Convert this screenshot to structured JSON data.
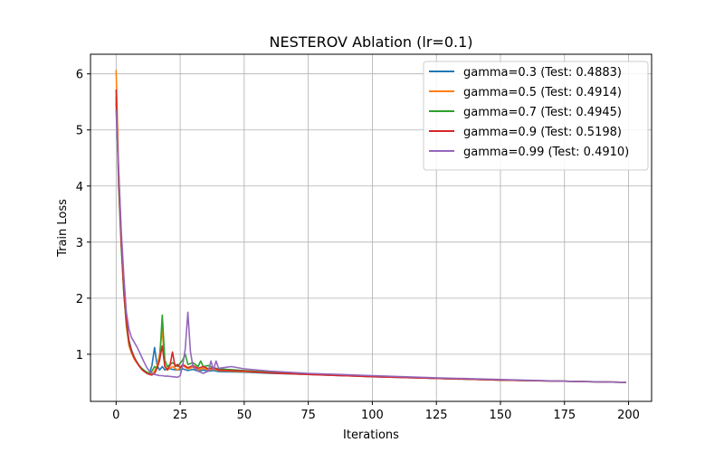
{
  "chart_data": {
    "type": "line",
    "title": "NESTEROV Ablation (lr=0.1)",
    "xlabel": "Iterations",
    "ylabel": "Train Loss",
    "xlim": [
      -10,
      209
    ],
    "ylim": [
      0.16,
      6.35
    ],
    "xticks": [
      0,
      25,
      50,
      75,
      100,
      125,
      150,
      175,
      200
    ],
    "yticks": [
      1,
      2,
      3,
      4,
      5,
      6
    ],
    "grid": true,
    "legend_position": "top-right",
    "series": [
      {
        "name": "gamma=0.3 (Test: 0.4883)",
        "color": "#1f77b4",
        "points": [
          [
            0,
            5.5
          ],
          [
            1,
            4.2
          ],
          [
            2,
            3.1
          ],
          [
            3,
            2.2
          ],
          [
            4,
            1.6
          ],
          [
            5,
            1.25
          ],
          [
            6,
            1.08
          ],
          [
            7,
            0.96
          ],
          [
            8,
            0.87
          ],
          [
            9,
            0.8
          ],
          [
            10,
            0.74
          ],
          [
            11,
            0.7
          ],
          [
            12,
            0.67
          ],
          [
            13,
            0.65
          ],
          [
            14,
            0.8
          ],
          [
            15,
            1.12
          ],
          [
            16,
            0.8
          ],
          [
            17,
            0.72
          ],
          [
            18,
            0.78
          ],
          [
            19,
            0.72
          ],
          [
            20,
            0.75
          ],
          [
            22,
            0.73
          ],
          [
            24,
            0.72
          ],
          [
            26,
            0.74
          ],
          [
            28,
            0.71
          ],
          [
            30,
            0.73
          ],
          [
            32,
            0.7
          ],
          [
            34,
            0.72
          ],
          [
            36,
            0.7
          ],
          [
            38,
            0.71
          ],
          [
            40,
            0.69
          ],
          [
            50,
            0.68
          ],
          [
            60,
            0.66
          ],
          [
            75,
            0.64
          ],
          [
            100,
            0.6
          ],
          [
            125,
            0.57
          ],
          [
            150,
            0.54
          ],
          [
            175,
            0.52
          ],
          [
            199,
            0.5
          ]
        ]
      },
      {
        "name": "gamma=0.5 (Test: 0.4914)",
        "color": "#ff7f0e",
        "points": [
          [
            0,
            6.07
          ],
          [
            1,
            4.3
          ],
          [
            2,
            3.0
          ],
          [
            3,
            2.1
          ],
          [
            4,
            1.5
          ],
          [
            5,
            1.15
          ],
          [
            6,
            1.02
          ],
          [
            7,
            0.92
          ],
          [
            8,
            0.85
          ],
          [
            9,
            0.79
          ],
          [
            10,
            0.74
          ],
          [
            11,
            0.71
          ],
          [
            12,
            0.68
          ],
          [
            13,
            0.66
          ],
          [
            14,
            0.65
          ],
          [
            15,
            0.7
          ],
          [
            16,
            0.8
          ],
          [
            17,
            1.0
          ],
          [
            18,
            1.45
          ],
          [
            19,
            0.8
          ],
          [
            20,
            0.72
          ],
          [
            22,
            0.78
          ],
          [
            24,
            0.72
          ],
          [
            26,
            0.8
          ],
          [
            28,
            0.74
          ],
          [
            30,
            0.77
          ],
          [
            32,
            0.72
          ],
          [
            34,
            0.75
          ],
          [
            36,
            0.72
          ],
          [
            38,
            0.74
          ],
          [
            40,
            0.71
          ],
          [
            50,
            0.69
          ],
          [
            60,
            0.67
          ],
          [
            75,
            0.64
          ],
          [
            100,
            0.61
          ],
          [
            125,
            0.57
          ],
          [
            150,
            0.54
          ],
          [
            175,
            0.52
          ],
          [
            199,
            0.5
          ]
        ]
      },
      {
        "name": "gamma=0.7 (Test: 0.4945)",
        "color": "#2ca02c",
        "points": [
          [
            0,
            5.6
          ],
          [
            1,
            4.0
          ],
          [
            2,
            2.9
          ],
          [
            3,
            2.1
          ],
          [
            4,
            1.55
          ],
          [
            5,
            1.2
          ],
          [
            6,
            1.05
          ],
          [
            7,
            0.95
          ],
          [
            8,
            0.87
          ],
          [
            9,
            0.8
          ],
          [
            10,
            0.75
          ],
          [
            11,
            0.71
          ],
          [
            12,
            0.68
          ],
          [
            13,
            0.66
          ],
          [
            14,
            0.7
          ],
          [
            15,
            0.78
          ],
          [
            16,
            0.75
          ],
          [
            17,
            0.9
          ],
          [
            18,
            1.7
          ],
          [
            19,
            0.9
          ],
          [
            20,
            0.78
          ],
          [
            22,
            0.85
          ],
          [
            24,
            0.78
          ],
          [
            26,
            0.9
          ],
          [
            27,
            1.0
          ],
          [
            28,
            0.82
          ],
          [
            30,
            0.85
          ],
          [
            32,
            0.78
          ],
          [
            33,
            0.88
          ],
          [
            34,
            0.78
          ],
          [
            36,
            0.8
          ],
          [
            38,
            0.76
          ],
          [
            40,
            0.74
          ],
          [
            50,
            0.71
          ],
          [
            60,
            0.68
          ],
          [
            75,
            0.65
          ],
          [
            100,
            0.61
          ],
          [
            125,
            0.57
          ],
          [
            150,
            0.54
          ],
          [
            175,
            0.52
          ],
          [
            199,
            0.5
          ]
        ]
      },
      {
        "name": "gamma=0.9 (Test: 0.5198)",
        "color": "#d62728",
        "points": [
          [
            0,
            5.72
          ],
          [
            1,
            4.1
          ],
          [
            2,
            3.0
          ],
          [
            3,
            2.15
          ],
          [
            4,
            1.6
          ],
          [
            5,
            1.22
          ],
          [
            6,
            1.06
          ],
          [
            7,
            0.95
          ],
          [
            8,
            0.86
          ],
          [
            9,
            0.79
          ],
          [
            10,
            0.73
          ],
          [
            11,
            0.69
          ],
          [
            12,
            0.66
          ],
          [
            13,
            0.64
          ],
          [
            14,
            0.63
          ],
          [
            15,
            0.66
          ],
          [
            16,
            0.75
          ],
          [
            17,
            0.9
          ],
          [
            18,
            1.15
          ],
          [
            19,
            0.78
          ],
          [
            20,
            0.72
          ],
          [
            21,
            0.8
          ],
          [
            22,
            1.04
          ],
          [
            23,
            0.78
          ],
          [
            24,
            0.82
          ],
          [
            25,
            0.76
          ],
          [
            26,
            0.82
          ],
          [
            28,
            0.76
          ],
          [
            30,
            0.8
          ],
          [
            32,
            0.75
          ],
          [
            34,
            0.78
          ],
          [
            36,
            0.74
          ],
          [
            38,
            0.76
          ],
          [
            40,
            0.72
          ],
          [
            50,
            0.7
          ],
          [
            60,
            0.67
          ],
          [
            75,
            0.64
          ],
          [
            100,
            0.6
          ],
          [
            125,
            0.57
          ],
          [
            150,
            0.54
          ],
          [
            175,
            0.52
          ],
          [
            199,
            0.5
          ]
        ]
      },
      {
        "name": "gamma=0.99 (Test: 0.4910)",
        "color": "#9467bd",
        "points": [
          [
            0,
            5.35
          ],
          [
            1,
            4.3
          ],
          [
            2,
            3.2
          ],
          [
            3,
            2.4
          ],
          [
            4,
            1.75
          ],
          [
            5,
            1.45
          ],
          [
            6,
            1.3
          ],
          [
            7,
            1.22
          ],
          [
            8,
            1.14
          ],
          [
            9,
            1.05
          ],
          [
            10,
            0.95
          ],
          [
            11,
            0.85
          ],
          [
            12,
            0.76
          ],
          [
            13,
            0.7
          ],
          [
            14,
            0.66
          ],
          [
            15,
            0.64
          ],
          [
            16,
            0.63
          ],
          [
            17,
            0.62
          ],
          [
            18,
            0.62
          ],
          [
            19,
            0.61
          ],
          [
            20,
            0.61
          ],
          [
            22,
            0.6
          ],
          [
            24,
            0.59
          ],
          [
            25,
            0.62
          ],
          [
            26,
            0.8
          ],
          [
            27,
            1.1
          ],
          [
            28,
            1.75
          ],
          [
            29,
            1.05
          ],
          [
            30,
            0.78
          ],
          [
            32,
            0.7
          ],
          [
            34,
            0.66
          ],
          [
            36,
            0.7
          ],
          [
            37,
            0.88
          ],
          [
            38,
            0.72
          ],
          [
            39,
            0.88
          ],
          [
            40,
            0.75
          ],
          [
            45,
            0.78
          ],
          [
            50,
            0.74
          ],
          [
            60,
            0.7
          ],
          [
            75,
            0.66
          ],
          [
            100,
            0.62
          ],
          [
            125,
            0.58
          ],
          [
            150,
            0.55
          ],
          [
            175,
            0.52
          ],
          [
            199,
            0.5
          ]
        ]
      }
    ]
  }
}
